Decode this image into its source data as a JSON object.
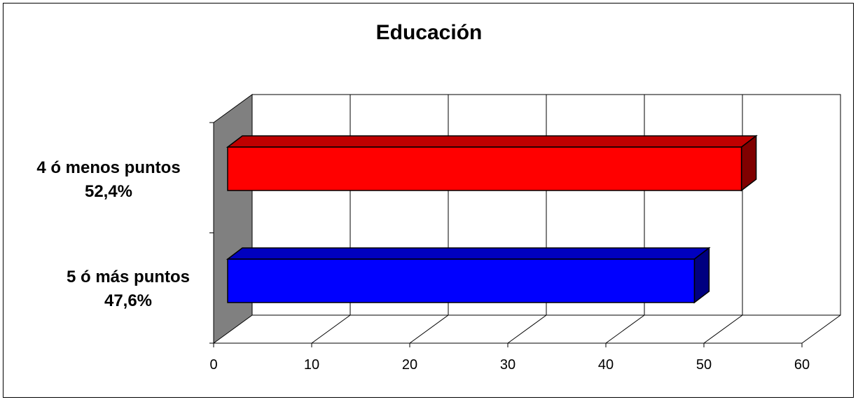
{
  "chart_data": {
    "type": "bar",
    "orientation": "horizontal",
    "style": "3d",
    "title": "Educación",
    "categories": [
      {
        "line1": "4 ó menos puntos",
        "line2": "52,4%"
      },
      {
        "line1": "5 ó más puntos",
        "line2": "47,6%"
      }
    ],
    "values": [
      52.4,
      47.6
    ],
    "colors": [
      "#ff0000",
      "#0000ff"
    ],
    "xlim": [
      0,
      60
    ],
    "xticks": [
      "0",
      "10",
      "20",
      "30",
      "40",
      "50",
      "60"
    ],
    "grid": true,
    "legend": "none",
    "xlabel": "",
    "ylabel": ""
  }
}
